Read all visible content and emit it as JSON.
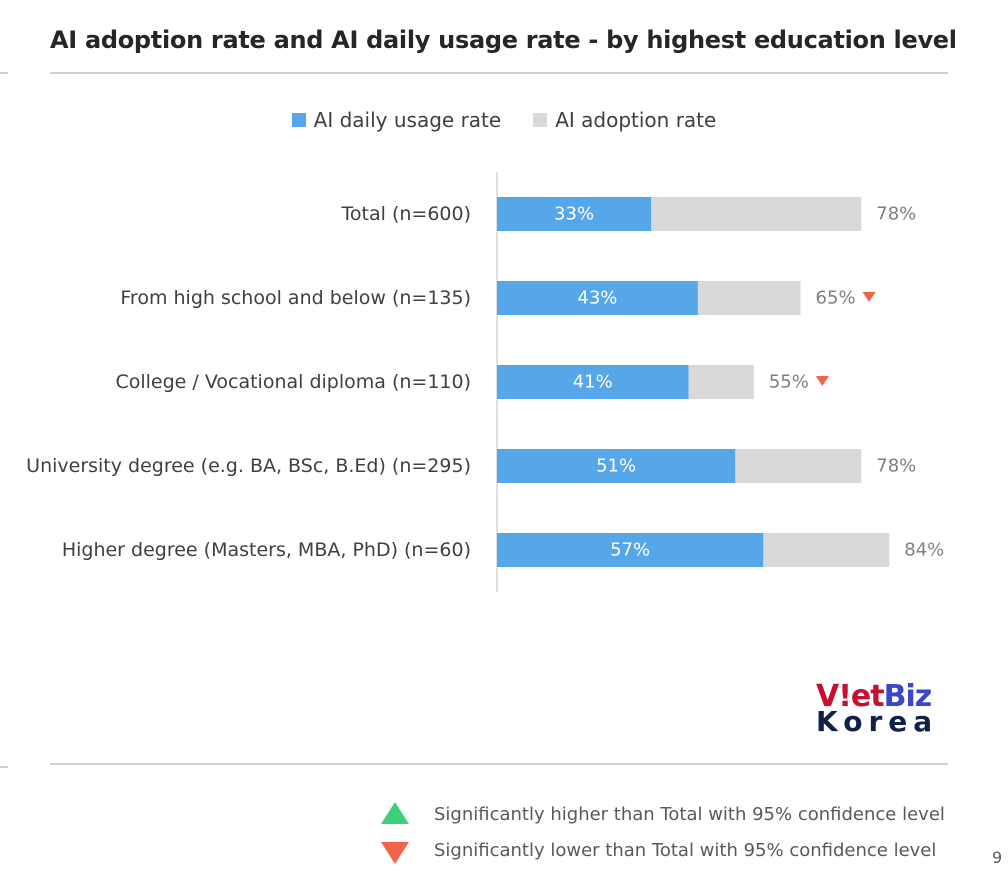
{
  "colors": {
    "daily": "#56a7ea",
    "adoption": "#d9d9d9",
    "down_marker": "#f0654a",
    "up_marker": "#3dcf7a"
  },
  "chart_data": {
    "type": "bar",
    "orientation": "horizontal",
    "stacked_overlay": true,
    "title": "AI adoption rate and AI daily usage rate - by highest education level",
    "xlim": [
      0,
      100
    ],
    "legend_placement": "top-center",
    "grid": false,
    "categories": [
      "Total (n=600)",
      "From high school and below (n=135)",
      "College / Vocational diploma (n=110)",
      "University degree (e.g. BA, BSc, B.Ed) (n=295)",
      "Higher degree (Masters, MBA, PhD) (n=60)"
    ],
    "series": [
      {
        "name": "AI daily usage rate",
        "values": [
          33,
          43,
          41,
          51,
          57
        ],
        "labels": [
          "33%",
          "43%",
          "41%",
          "51%",
          "57%"
        ]
      },
      {
        "name": "AI adoption rate",
        "values": [
          78,
          65,
          55,
          78,
          84
        ],
        "labels": [
          "78%",
          "65%",
          "55%",
          "78%",
          "84%"
        ],
        "significance": [
          "",
          "lower",
          "lower",
          "",
          ""
        ]
      }
    ]
  },
  "logo": {
    "line1_a": "V!et",
    "line1_b": "Biz",
    "line2": "Korea"
  },
  "notes": {
    "higher": "Significantly higher than Total with 95% confidence level",
    "lower": "Significantly lower than Total with 95% confidence level"
  },
  "page_number": "9"
}
